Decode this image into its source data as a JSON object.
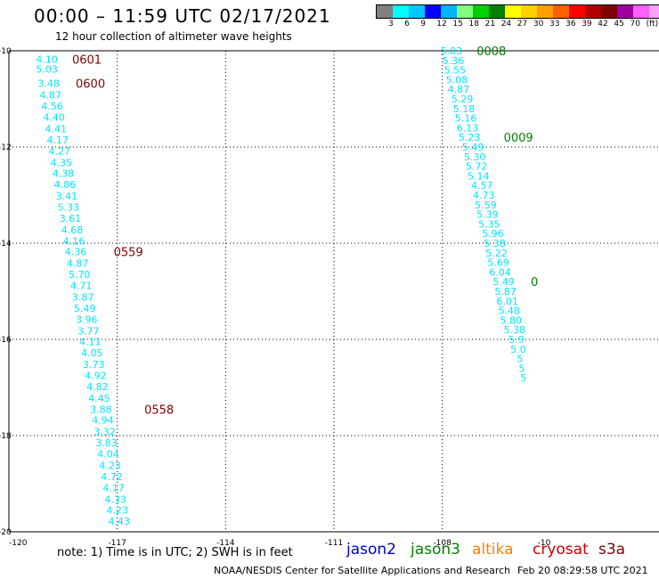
{
  "title": "00:00 – 11:59 UTC 02/17/2021",
  "subtitle": "12 hour collection of altimeter wave heights",
  "colorbar": {
    "colors": [
      "#808080",
      "#00ffff",
      "#00c8ff",
      "#0000ff",
      "#00b4ff",
      "#80ff80",
      "#00d000",
      "#008000",
      "#ffff00",
      "#ffd000",
      "#ffa000",
      "#ff6000",
      "#ff0000",
      "#b00000",
      "#800000",
      "#a000a0",
      "#ff60ff",
      "#ffa0ff",
      "#000000"
    ],
    "labels": [
      "3",
      "6",
      "9",
      "12",
      "15",
      "18",
      "21",
      "24",
      "27",
      "30",
      "33",
      "36",
      "39",
      "42",
      "45",
      "70",
      "(ft)"
    ]
  },
  "map": {
    "lon_range": [
      -120,
      -102
    ],
    "lat_range": [
      -20,
      -10
    ],
    "lon_ticks": [
      "-120",
      "-117",
      "-114",
      "-111",
      "-108",
      "-10"
    ],
    "lat_ticks": [
      "-10",
      "-12",
      "-14",
      "-16",
      "-18",
      "-20"
    ]
  },
  "tracks": [
    {
      "color": "#00e5ff",
      "points": [
        {
          "lon": -118.95,
          "lat": -10.18,
          "v": "4.10"
        },
        {
          "lon": -118.95,
          "lat": -10.38,
          "v": "5.03"
        },
        {
          "lon": -118.9,
          "lat": -10.68,
          "v": "3.48"
        },
        {
          "lon": -118.85,
          "lat": -10.92,
          "v": "4.87"
        },
        {
          "lon": -118.8,
          "lat": -11.15,
          "v": "4.56"
        },
        {
          "lon": -118.75,
          "lat": -11.38,
          "v": "4.40"
        },
        {
          "lon": -118.7,
          "lat": -11.62,
          "v": "4.41"
        },
        {
          "lon": -118.65,
          "lat": -11.85,
          "v": "4.17"
        },
        {
          "lon": -118.6,
          "lat": -12.08,
          "v": "4.27"
        },
        {
          "lon": -118.55,
          "lat": -12.32,
          "v": "4.35"
        },
        {
          "lon": -118.5,
          "lat": -12.55,
          "v": "4.38"
        },
        {
          "lon": -118.45,
          "lat": -12.78,
          "v": "4.86"
        },
        {
          "lon": -118.4,
          "lat": -13.02,
          "v": "3.41"
        },
        {
          "lon": -118.35,
          "lat": -13.25,
          "v": "5.33"
        },
        {
          "lon": -118.3,
          "lat": -13.48,
          "v": "3.61"
        },
        {
          "lon": -118.25,
          "lat": -13.72,
          "v": "4.68"
        },
        {
          "lon": -118.2,
          "lat": -13.95,
          "v": "4.16"
        },
        {
          "lon": -118.15,
          "lat": -14.18,
          "v": "4.36"
        },
        {
          "lon": -118.1,
          "lat": -14.42,
          "v": "4.87"
        },
        {
          "lon": -118.05,
          "lat": -14.65,
          "v": "5.70"
        },
        {
          "lon": -118.0,
          "lat": -14.88,
          "v": "4.71"
        },
        {
          "lon": -117.95,
          "lat": -15.12,
          "v": "3.87"
        },
        {
          "lon": -117.9,
          "lat": -15.35,
          "v": "5.49"
        },
        {
          "lon": -117.85,
          "lat": -15.58,
          "v": "3.96"
        },
        {
          "lon": -117.8,
          "lat": -15.82,
          "v": "3.77"
        },
        {
          "lon": -117.75,
          "lat": -16.05,
          "v": "4.11"
        },
        {
          "lon": -117.7,
          "lat": -16.28,
          "v": "4.05"
        },
        {
          "lon": -117.65,
          "lat": -16.52,
          "v": "3.73"
        },
        {
          "lon": -117.6,
          "lat": -16.75,
          "v": "4.92"
        },
        {
          "lon": -117.55,
          "lat": -16.98,
          "v": "4.82"
        },
        {
          "lon": -117.5,
          "lat": -17.22,
          "v": "4.45"
        },
        {
          "lon": -117.45,
          "lat": -17.45,
          "v": "3.88"
        },
        {
          "lon": -117.4,
          "lat": -17.68,
          "v": "4.94"
        },
        {
          "lon": -117.35,
          "lat": -17.92,
          "v": "3.32"
        },
        {
          "lon": -117.3,
          "lat": -18.15,
          "v": "3.83"
        },
        {
          "lon": -117.25,
          "lat": -18.38,
          "v": "4.04"
        },
        {
          "lon": -117.2,
          "lat": -18.62,
          "v": "4.23"
        },
        {
          "lon": -117.15,
          "lat": -18.85,
          "v": "4.72"
        },
        {
          "lon": -117.1,
          "lat": -19.08,
          "v": "4.17"
        },
        {
          "lon": -117.05,
          "lat": -19.32,
          "v": "4.33"
        },
        {
          "lon": -117.0,
          "lat": -19.55,
          "v": "4.23"
        },
        {
          "lon": -116.95,
          "lat": -19.78,
          "v": "4.43"
        }
      ]
    },
    {
      "color": "#00e5ff",
      "points": [
        {
          "lon": -107.75,
          "lat": -10.0,
          "v": "5.03"
        },
        {
          "lon": -107.7,
          "lat": -10.2,
          "v": "5.36"
        },
        {
          "lon": -107.65,
          "lat": -10.4,
          "v": "5.55"
        },
        {
          "lon": -107.6,
          "lat": -10.6,
          "v": "5.08"
        },
        {
          "lon": -107.55,
          "lat": -10.8,
          "v": "4.87"
        },
        {
          "lon": -107.45,
          "lat": -11.0,
          "v": "5.29"
        },
        {
          "lon": -107.4,
          "lat": -11.2,
          "v": "5.18"
        },
        {
          "lon": -107.35,
          "lat": -11.4,
          "v": "5.16"
        },
        {
          "lon": -107.3,
          "lat": -11.6,
          "v": "6.13"
        },
        {
          "lon": -107.25,
          "lat": -11.8,
          "v": "5.23"
        },
        {
          "lon": -107.15,
          "lat": -12.0,
          "v": "5.49"
        },
        {
          "lon": -107.1,
          "lat": -12.2,
          "v": "5.30"
        },
        {
          "lon": -107.05,
          "lat": -12.4,
          "v": "5.72"
        },
        {
          "lon": -107.0,
          "lat": -12.6,
          "v": "5.14"
        },
        {
          "lon": -106.9,
          "lat": -12.8,
          "v": "4.57"
        },
        {
          "lon": -106.85,
          "lat": -13.0,
          "v": "4.73"
        },
        {
          "lon": -106.8,
          "lat": -13.2,
          "v": "5.59"
        },
        {
          "lon": -106.75,
          "lat": -13.4,
          "v": "5.39"
        },
        {
          "lon": -106.7,
          "lat": -13.6,
          "v": "5.35"
        },
        {
          "lon": -106.6,
          "lat": -13.8,
          "v": "5.96"
        },
        {
          "lon": -106.55,
          "lat": -14.0,
          "v": "5.38"
        },
        {
          "lon": -106.5,
          "lat": -14.2,
          "v": "5.22"
        },
        {
          "lon": -106.45,
          "lat": -14.4,
          "v": "5.69"
        },
        {
          "lon": -106.4,
          "lat": -14.6,
          "v": "6.04"
        },
        {
          "lon": -106.3,
          "lat": -14.8,
          "v": "5.49"
        },
        {
          "lon": -106.25,
          "lat": -15.0,
          "v": "5.87"
        },
        {
          "lon": -106.2,
          "lat": -15.2,
          "v": "6.01"
        },
        {
          "lon": -106.15,
          "lat": -15.4,
          "v": "5.48"
        },
        {
          "lon": -106.1,
          "lat": -15.6,
          "v": "5.80"
        },
        {
          "lon": -106.0,
          "lat": -15.8,
          "v": "5.38"
        },
        {
          "lon": -105.95,
          "lat": -16.0,
          "v": "5.9"
        },
        {
          "lon": -105.9,
          "lat": -16.2,
          "v": "5.0"
        },
        {
          "lon": -105.85,
          "lat": -16.4,
          "v": "5"
        },
        {
          "lon": -105.8,
          "lat": -16.6,
          "v": "5"
        },
        {
          "lon": -105.75,
          "lat": -16.8,
          "v": "5"
        }
      ]
    }
  ],
  "time_labels": [
    {
      "lon": -118.25,
      "lat": -10.18,
      "t": "0601",
      "color": "#800000"
    },
    {
      "lon": -118.15,
      "lat": -10.68,
      "t": "0600",
      "color": "#800000"
    },
    {
      "lon": -117.1,
      "lat": -14.18,
      "t": "0559",
      "color": "#800000"
    },
    {
      "lon": -116.25,
      "lat": -17.45,
      "t": "0558",
      "color": "#800000"
    },
    {
      "lon": -107.05,
      "lat": -10.0,
      "t": "0008",
      "color": "#008000"
    },
    {
      "lon": -106.3,
      "lat": -11.8,
      "t": "0009",
      "color": "#008000"
    },
    {
      "lon": -105.55,
      "lat": -14.8,
      "t": "0",
      "color": "#008000"
    }
  ],
  "note": "note:  1) Time is in UTC;  2) SWH is in feet",
  "satellites": [
    {
      "name": "jason2",
      "color": "#0000cc"
    },
    {
      "name": "jason3",
      "color": "#008000"
    },
    {
      "name": "altika",
      "color": "#ff8000"
    },
    {
      "name": "cryosat",
      "color": "#cc0000"
    },
    {
      "name": "s3a",
      "color": "#800000"
    }
  ],
  "footer": {
    "agency": "NOAA/NESDIS Center for Satellite Applications and Research",
    "timestamp": "Feb 20 08:29:58 UTC 2021"
  }
}
